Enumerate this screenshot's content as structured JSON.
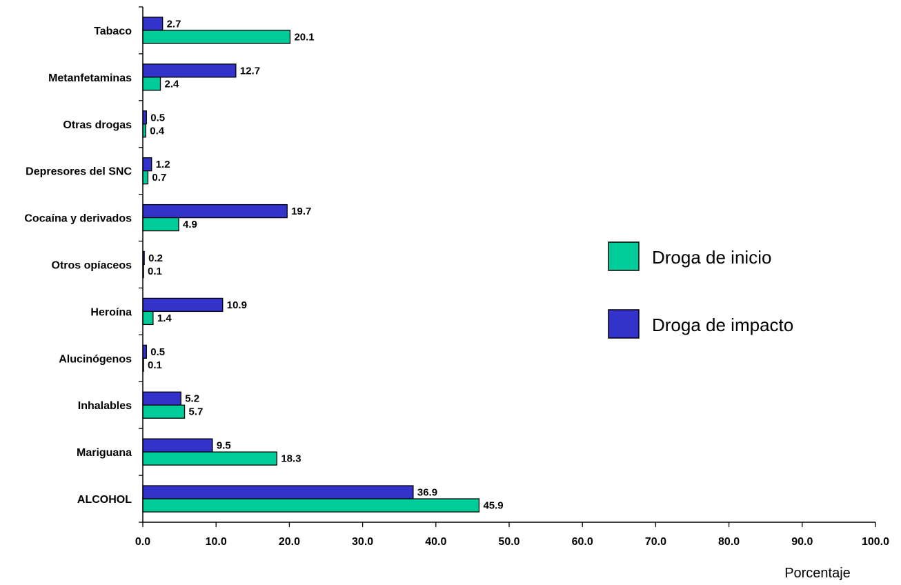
{
  "chart_data": {
    "type": "bar",
    "orientation": "horizontal",
    "title": "",
    "xlabel": "Porcentaje",
    "ylabel": "",
    "xlim": [
      0,
      100
    ],
    "x_ticks": [
      "0.0",
      "10.0",
      "20.0",
      "30.0",
      "40.0",
      "50.0",
      "60.0",
      "70.0",
      "80.0",
      "90.0",
      "100.0"
    ],
    "grid": false,
    "legend_position": "right",
    "categories": [
      "Tabaco",
      "Metanfetaminas",
      "Otras drogas",
      "Depresores del SNC",
      "Cocaína y derivados",
      "Otros opíaceos",
      "Heroína",
      "Alucinógenos",
      "Inhalables",
      "Mariguana",
      "ALCOHOL"
    ],
    "series": [
      {
        "name": "Droga de impacto",
        "color": "#3333cc",
        "values": [
          2.7,
          12.7,
          0.5,
          1.2,
          19.7,
          0.2,
          10.9,
          0.5,
          5.2,
          9.5,
          36.9
        ],
        "labels": [
          "2.7",
          "12.7",
          "0.5",
          "1.2",
          "19.7",
          "0.2",
          "10.9",
          "0.5",
          "5.2",
          "9.5",
          "36.9"
        ]
      },
      {
        "name": "Droga de inicio",
        "color": "#00cc99",
        "values": [
          20.1,
          2.4,
          0.4,
          0.7,
          4.9,
          0.1,
          1.4,
          0.1,
          5.7,
          18.3,
          45.9
        ],
        "labels": [
          "20.1",
          "2.4",
          "0.4",
          "0.7",
          "4.9",
          "0.1",
          "1.4",
          "0.1",
          "5.7",
          "18.3",
          "45.9"
        ]
      }
    ],
    "legend": [
      {
        "label": "Droga de inicio",
        "color": "#00cc99"
      },
      {
        "label": "Droga de impacto",
        "color": "#3333cc"
      }
    ]
  }
}
